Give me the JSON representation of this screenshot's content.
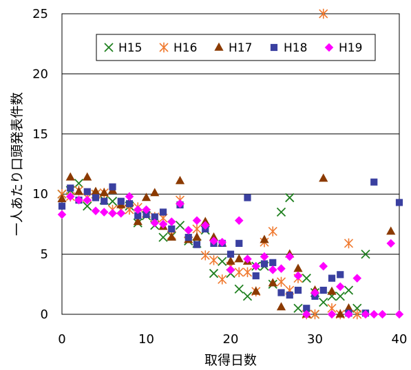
{
  "chart_data": {
    "type": "scatter",
    "title": "",
    "xlabel": "取得日数",
    "ylabel": "一人あたり口頭発表件数",
    "xlim": [
      0,
      40
    ],
    "ylim": [
      0,
      25
    ],
    "xticks": [
      0,
      10,
      20,
      30,
      40
    ],
    "yticks": [
      0,
      5,
      10,
      15,
      20,
      25
    ],
    "grid": "horizontal",
    "legend": "top-right-inside",
    "series": [
      {
        "name": "H15",
        "marker": "x-cross",
        "color": "#208020",
        "points": [
          [
            0,
            10
          ],
          [
            1,
            10.3
          ],
          [
            2,
            10.9
          ],
          [
            3,
            9
          ],
          [
            4,
            10
          ],
          [
            5,
            9.5
          ],
          [
            6,
            9.4
          ],
          [
            7,
            8.7
          ],
          [
            8,
            9
          ],
          [
            9,
            7.6
          ],
          [
            10,
            8.2
          ],
          [
            11,
            7.4
          ],
          [
            12,
            6.4
          ],
          [
            13,
            6.5
          ],
          [
            14,
            7.4
          ],
          [
            15,
            6.1
          ],
          [
            16,
            5.9
          ],
          [
            17,
            7
          ],
          [
            18,
            3.4
          ],
          [
            19,
            4.4
          ],
          [
            20,
            3.4
          ],
          [
            21,
            2.1
          ],
          [
            22,
            1.5
          ],
          [
            23,
            4
          ],
          [
            24,
            4
          ],
          [
            25,
            2.5
          ],
          [
            26,
            8.5
          ],
          [
            27,
            9.7
          ],
          [
            28,
            0.5
          ],
          [
            29,
            3
          ],
          [
            30,
            1.8
          ],
          [
            31,
            1
          ],
          [
            32,
            1.5
          ],
          [
            33,
            1.5
          ],
          [
            34,
            2
          ],
          [
            35,
            0.5
          ],
          [
            36,
            5
          ],
          [
            30,
            0
          ]
        ]
      },
      {
        "name": "H16",
        "marker": "asterisk",
        "color": "#f07a30",
        "points": [
          [
            0,
            10
          ],
          [
            1,
            9.8
          ],
          [
            2,
            10.3
          ],
          [
            3,
            9.7
          ],
          [
            4,
            10
          ],
          [
            5,
            10.1
          ],
          [
            6,
            8.7
          ],
          [
            7,
            8.7
          ],
          [
            8,
            8.7
          ],
          [
            9,
            8.9
          ],
          [
            10,
            8.4
          ],
          [
            11,
            8.1
          ],
          [
            12,
            8
          ],
          [
            13,
            6.6
          ],
          [
            14,
            9.5
          ],
          [
            15,
            6.7
          ],
          [
            16,
            7.1
          ],
          [
            17,
            4.9
          ],
          [
            18,
            4.5
          ],
          [
            19,
            2.9
          ],
          [
            20,
            4
          ],
          [
            21,
            3.5
          ],
          [
            22,
            3.5
          ],
          [
            23,
            1.9
          ],
          [
            24,
            6
          ],
          [
            25,
            6.9
          ],
          [
            26,
            2.7
          ],
          [
            27,
            2
          ],
          [
            28,
            3
          ],
          [
            29,
            0
          ],
          [
            30,
            0
          ],
          [
            31,
            25
          ],
          [
            32,
            0.5
          ],
          [
            33,
            0
          ],
          [
            34,
            5.9
          ],
          [
            35,
            0
          ]
        ]
      },
      {
        "name": "H17",
        "marker": "triangle",
        "color": "#8b3a00",
        "points": [
          [
            0,
            9.6
          ],
          [
            1,
            11.4
          ],
          [
            2,
            10.2
          ],
          [
            3,
            11.4
          ],
          [
            4,
            10.2
          ],
          [
            5,
            10.1
          ],
          [
            6,
            10.3
          ],
          [
            7,
            9.1
          ],
          [
            8,
            9.3
          ],
          [
            9,
            7.7
          ],
          [
            10,
            9.7
          ],
          [
            11,
            10.1
          ],
          [
            12,
            7.3
          ],
          [
            13,
            6.4
          ],
          [
            14,
            11.1
          ],
          [
            15,
            6.2
          ],
          [
            16,
            6.4
          ],
          [
            17,
            7.7
          ],
          [
            18,
            6.4
          ],
          [
            19,
            5.9
          ],
          [
            20,
            4.4
          ],
          [
            21,
            4.6
          ],
          [
            22,
            4.4
          ],
          [
            23,
            1.9
          ],
          [
            24,
            6.2
          ],
          [
            25,
            2.6
          ],
          [
            26,
            0.6
          ],
          [
            27,
            5
          ],
          [
            28,
            3.8
          ],
          [
            29,
            0
          ],
          [
            30,
            2
          ],
          [
            31,
            11.3
          ],
          [
            32,
            1.9
          ],
          [
            33,
            0
          ],
          [
            34,
            0.5
          ],
          [
            39,
            6.9
          ]
        ]
      },
      {
        "name": "H18",
        "marker": "square",
        "color": "#3a40a0",
        "points": [
          [
            0,
            9
          ],
          [
            1,
            10.5
          ],
          [
            2,
            9.5
          ],
          [
            3,
            10.2
          ],
          [
            4,
            9.7
          ],
          [
            5,
            9.4
          ],
          [
            6,
            10.6
          ],
          [
            7,
            9.4
          ],
          [
            8,
            9.2
          ],
          [
            9,
            8.2
          ],
          [
            10,
            8.3
          ],
          [
            11,
            8.1
          ],
          [
            12,
            8.5
          ],
          [
            13,
            7.1
          ],
          [
            14,
            9.1
          ],
          [
            15,
            6.4
          ],
          [
            16,
            5.8
          ],
          [
            17,
            7.1
          ],
          [
            18,
            5.9
          ],
          [
            19,
            5.9
          ],
          [
            20,
            5
          ],
          [
            21,
            5.9
          ],
          [
            22,
            9.7
          ],
          [
            23,
            3.2
          ],
          [
            24,
            4.2
          ],
          [
            25,
            4.3
          ],
          [
            26,
            1.8
          ],
          [
            27,
            1.6
          ],
          [
            28,
            2
          ],
          [
            29,
            0.5
          ],
          [
            30,
            1.5
          ],
          [
            31,
            2
          ],
          [
            32,
            3
          ],
          [
            33,
            3.3
          ],
          [
            34,
            0.1
          ],
          [
            36,
            0.1
          ],
          [
            37,
            11
          ],
          [
            40,
            9.3
          ]
        ]
      },
      {
        "name": "H19",
        "marker": "diamond",
        "color": "#ff00ff",
        "points": [
          [
            0,
            8.3
          ],
          [
            1,
            9.8
          ],
          [
            2,
            9.5
          ],
          [
            3,
            9.5
          ],
          [
            4,
            8.6
          ],
          [
            5,
            8.5
          ],
          [
            6,
            8.4
          ],
          [
            7,
            8.4
          ],
          [
            8,
            9.8
          ],
          [
            9,
            8.7
          ],
          [
            10,
            8.7
          ],
          [
            11,
            7.6
          ],
          [
            12,
            7.5
          ],
          [
            13,
            7.7
          ],
          [
            14,
            9.2
          ],
          [
            15,
            7
          ],
          [
            16,
            7.8
          ],
          [
            17,
            7.4
          ],
          [
            18,
            6.1
          ],
          [
            19,
            6
          ],
          [
            20,
            3.7
          ],
          [
            21,
            7.8
          ],
          [
            22,
            4.6
          ],
          [
            23,
            4
          ],
          [
            24,
            4.8
          ],
          [
            25,
            3.7
          ],
          [
            26,
            3.8
          ],
          [
            27,
            4.8
          ],
          [
            28,
            3.2
          ],
          [
            29,
            0
          ],
          [
            30,
            1.8
          ],
          [
            31,
            4
          ],
          [
            32,
            0
          ],
          [
            33,
            2.3
          ],
          [
            34,
            0
          ],
          [
            35,
            3
          ],
          [
            36,
            0
          ],
          [
            37,
            0
          ],
          [
            38,
            0
          ],
          [
            39,
            5.9
          ],
          [
            40,
            0
          ]
        ]
      }
    ]
  }
}
